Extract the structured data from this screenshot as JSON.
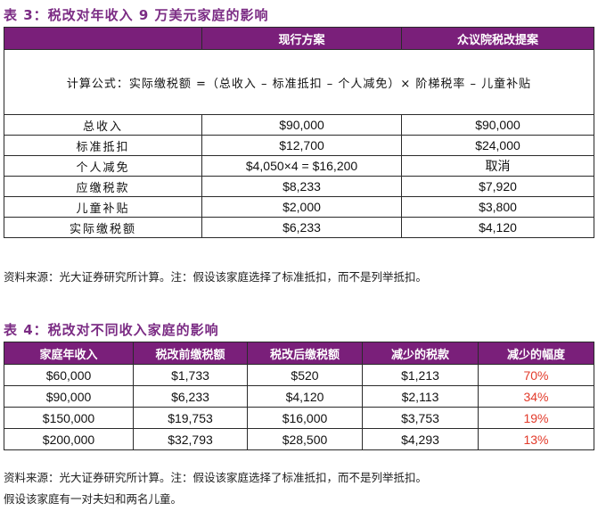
{
  "table3": {
    "title": "表 3：税改对年收入 9 万美元家庭的影响",
    "headers": [
      "",
      "现行方案",
      "众议院税改提案"
    ],
    "formula": "计算公式：实际缴税额 =（总收入 – 标准抵扣 – 个人减免）× 阶梯税率 – 儿童补贴",
    "rows": [
      {
        "label": "总收入",
        "current": "$90,000",
        "proposal": "$90,000"
      },
      {
        "label": "标准抵扣",
        "current": "$12,700",
        "proposal": "$24,000"
      },
      {
        "label": "个人减免",
        "current": "$4,050×4 = $16,200",
        "proposal": "取消"
      },
      {
        "label": "应缴税款",
        "current": "$8,233",
        "proposal": "$7,920"
      },
      {
        "label": "儿童补贴",
        "current": "$2,000",
        "proposal": "$3,800"
      },
      {
        "label": "实际缴税额",
        "current": "$6,233",
        "proposal": "$4,120"
      }
    ],
    "source": "资料来源：光大证券研究所计算。注：假设该家庭选择了标准抵扣，而不是列举抵扣。"
  },
  "table4": {
    "title": "表 4：税改对不同收入家庭的影响",
    "headers": [
      "家庭年收入",
      "税改前缴税额",
      "税改后缴税额",
      "减少的税款",
      "减少的幅度"
    ],
    "rows": [
      {
        "income": "$60,000",
        "before": "$1,733",
        "after": "$520",
        "reduced": "$1,213",
        "pct": "70%"
      },
      {
        "income": "$90,000",
        "before": "$6,233",
        "after": "$4,120",
        "reduced": "$2,113",
        "pct": "34%"
      },
      {
        "income": "$150,000",
        "before": "$19,753",
        "after": "$16,000",
        "reduced": "$3,753",
        "pct": "19%"
      },
      {
        "income": "$200,000",
        "before": "$32,793",
        "after": "$28,500",
        "reduced": "$4,293",
        "pct": "13%"
      }
    ],
    "source_line1": "资料来源：光大证券研究所计算。注：假设该家庭选择了标准抵扣，而不是列举抵扣。",
    "source_line2": "假设该家庭有一对夫妇和两名儿童。"
  },
  "colors": {
    "header_bg": "#7a1f7a",
    "title": "#7b2c84",
    "pct_red": "#e23a2a"
  }
}
